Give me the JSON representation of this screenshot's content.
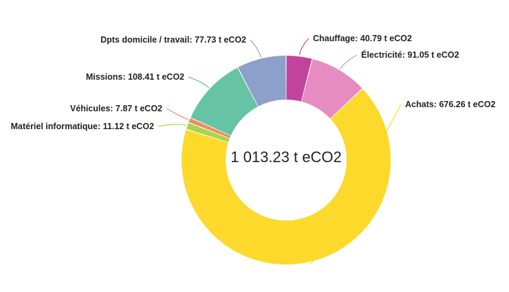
{
  "chart_data": {
    "type": "pie",
    "variant": "donut",
    "unit": "t eCO2",
    "total_label": "1 013.23 t eCO2",
    "slices": [
      {
        "label": "Chauffage",
        "value": 40.79,
        "value_text": "40.79 t eCO2",
        "color": "#C2449A"
      },
      {
        "label": "Électricité",
        "value": 91.05,
        "value_text": "91.05 t eCO2",
        "color": "#E68CC3"
      },
      {
        "label": "Achats",
        "value": 676.26,
        "value_text": "676.26 t eCO2",
        "color": "#FCD92B"
      },
      {
        "label": "Matériel informatique",
        "value": 11.12,
        "value_text": "11.12 t eCO2",
        "color": "#A5D64B"
      },
      {
        "label": "Véhicules",
        "value": 7.87,
        "value_text": "7.87 t eCO2",
        "color": "#F58A5E"
      },
      {
        "label": "Missions",
        "value": 108.41,
        "value_text": "108.41 t eCO2",
        "color": "#66C4A4"
      },
      {
        "label": "Dpts domicile / travail",
        "value": 77.73,
        "value_text": "77.73 t eCO2",
        "color": "#8DA0CB"
      }
    ]
  }
}
